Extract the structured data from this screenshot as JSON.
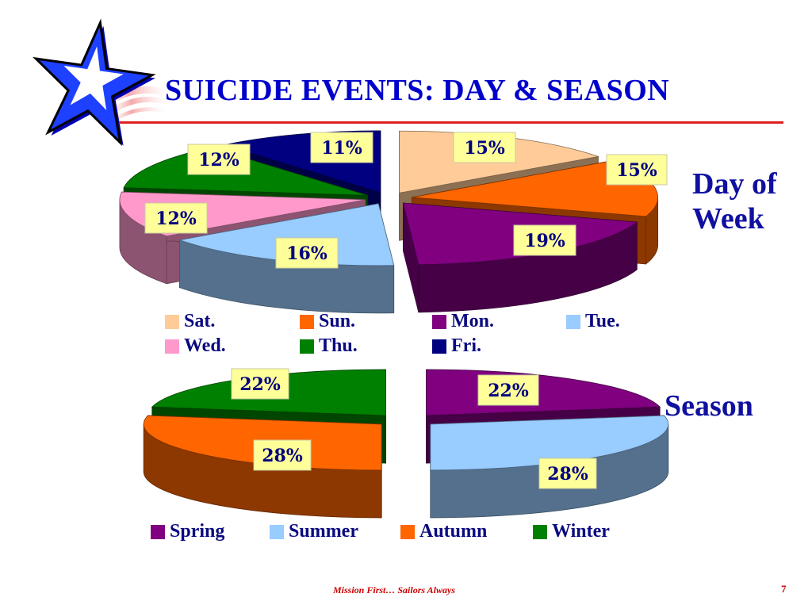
{
  "slide": {
    "title": "SUICIDE EVENTS: DAY & SEASON",
    "day_label": "Day of Week",
    "season_label": "Season",
    "footer": "Mission First… Sailors Always",
    "page_number": "7"
  },
  "colors": {
    "title": "#0000cc",
    "rule": "#e02020",
    "footer": "#cc0000"
  },
  "chart_data": [
    {
      "type": "pie",
      "style": "exploded-3d",
      "segments": [
        {
          "name": "Sat.",
          "value": 15,
          "label": "15%",
          "color": "#ffcc99"
        },
        {
          "name": "Sun.",
          "value": 15,
          "label": "15%",
          "color": "#ff6600"
        },
        {
          "name": "Mon.",
          "value": 19,
          "label": "19%",
          "color": "#800080"
        },
        {
          "name": "Tue.",
          "value": 16,
          "label": "16%",
          "color": "#99ccff"
        },
        {
          "name": "Wed.",
          "value": 12,
          "label": "12%",
          "color": "#ff99cc"
        },
        {
          "name": "Thu.",
          "value": 12,
          "label": "12%",
          "color": "#008000"
        },
        {
          "name": "Fri.",
          "value": 11,
          "label": "11%",
          "color": "#000080"
        }
      ],
      "legend": "bottom"
    },
    {
      "type": "pie",
      "style": "exploded-3d",
      "segments": [
        {
          "name": "Spring",
          "value": 22,
          "label": "22%",
          "color": "#800080"
        },
        {
          "name": "Summer",
          "value": 28,
          "label": "28%",
          "color": "#99ccff"
        },
        {
          "name": "Autumn",
          "value": 28,
          "label": "28%",
          "color": "#ff6600"
        },
        {
          "name": "Winter",
          "value": 22,
          "label": "22%",
          "color": "#008000"
        }
      ],
      "legend": "bottom"
    }
  ]
}
